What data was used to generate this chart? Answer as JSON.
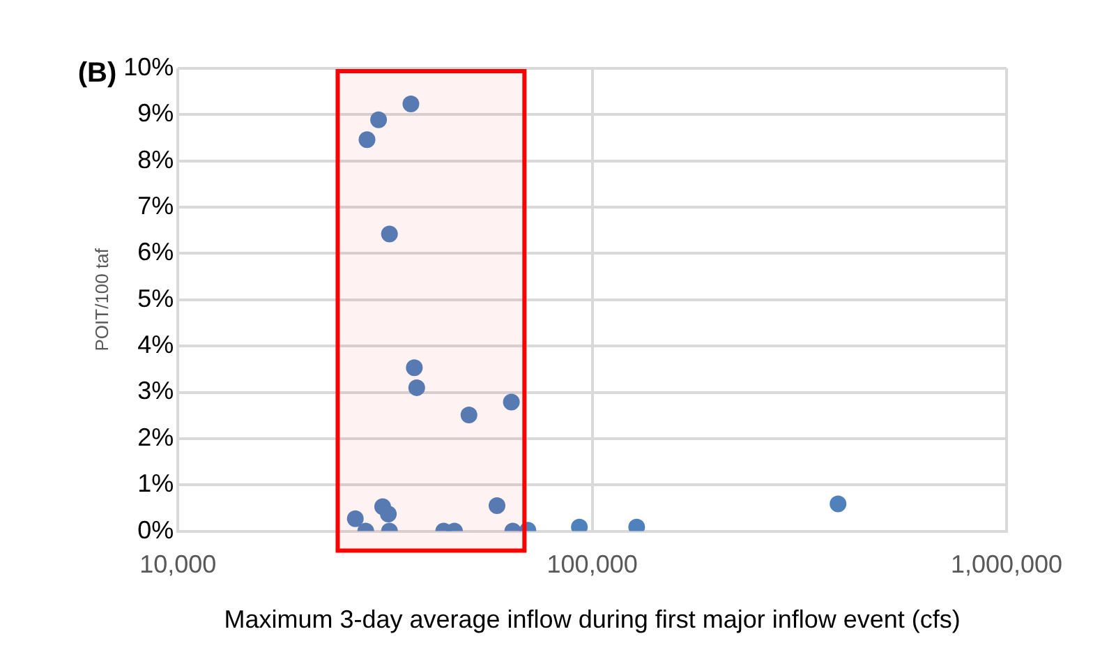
{
  "chart_data": {
    "type": "scatter",
    "xlabel": "Maximum 3-day average inflow during first major inflow event (cfs)",
    "ylabel": "POIT/100 taf",
    "annotations": [
      "(B)"
    ],
    "x": [
      36500,
      30500,
      28600,
      32400,
      37200,
      37700,
      50400,
      63800,
      31200,
      32200,
      26800,
      28400,
      32400,
      43800,
      46500,
      58900,
      64300,
      69900,
      93100,
      128000,
      392000
    ],
    "series": [
      {
        "color": "#4f81bd",
        "values": [
          9.23,
          8.89,
          8.46,
          6.42,
          3.53,
          3.1,
          2.51,
          2.79,
          0.53,
          0.37,
          0.27,
          0,
          0,
          0,
          0,
          0.55,
          0,
          0.02,
          0.09,
          0.09,
          0.59
        ]
      }
    ],
    "log": "x",
    "xlim": [
      10000,
      1000000
    ],
    "xticks": [
      {
        "value": 10000,
        "label": "10,000"
      },
      {
        "value": 100000,
        "label": "100,000"
      },
      {
        "value": 1000000,
        "label": "1,000,000"
      }
    ],
    "ylim": [
      0,
      10
    ],
    "yticks": [
      {
        "value": 0,
        "label": "0%"
      },
      {
        "value": 1,
        "label": "1%"
      },
      {
        "value": 2,
        "label": "2%"
      },
      {
        "value": 3,
        "label": "3%"
      },
      {
        "value": 4,
        "label": "4%"
      },
      {
        "value": 5,
        "label": "5%"
      },
      {
        "value": 6,
        "label": "6%"
      },
      {
        "value": 7,
        "label": "7%"
      },
      {
        "value": 8,
        "label": "8%"
      },
      {
        "value": 9,
        "label": "9%"
      },
      {
        "value": 10,
        "label": "10%"
      }
    ],
    "bands": [
      {
        "axis": "x",
        "from": 24300,
        "to": 68600,
        "color": "#ff0000"
      }
    ],
    "grid": true,
    "legend": false,
    "marker": "circle"
  }
}
